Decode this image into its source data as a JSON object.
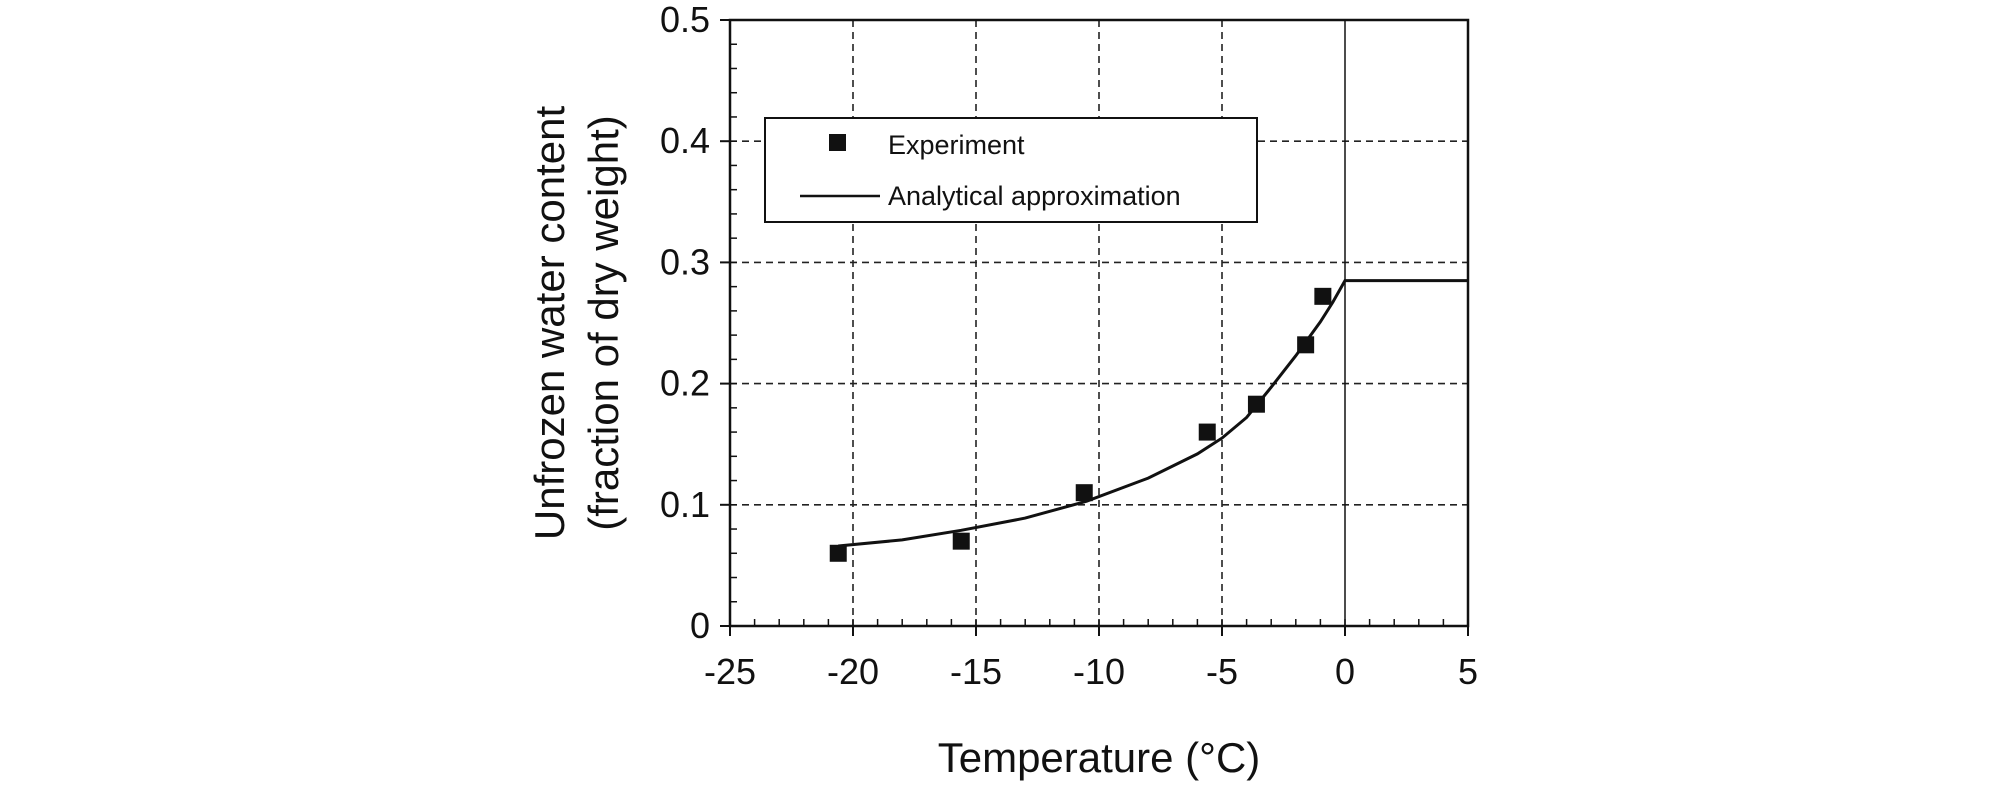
{
  "chart_data": {
    "type": "scatter",
    "title": "",
    "xlabel": "Temperature (°C)",
    "ylabel_lines": [
      "Unfrozen water content",
      "(fraction of dry weight)"
    ],
    "xlim": [
      -25,
      5
    ],
    "ylim": [
      0,
      0.5
    ],
    "x_ticks": [
      -25,
      -20,
      -15,
      -10,
      -5,
      0,
      5
    ],
    "x_tick_labels": [
      "-25",
      "-20",
      "-15",
      "-10",
      "-5",
      "0",
      "5"
    ],
    "y_ticks": [
      0,
      0.1,
      0.2,
      0.3,
      0.4,
      0.5
    ],
    "y_tick_labels": [
      "0",
      "0.1",
      "0.2",
      "0.3",
      "0.4",
      "0.5"
    ],
    "grid": true,
    "legend_position": "upper-left",
    "series": [
      {
        "name": "Experiment",
        "kind": "markers",
        "marker": "square",
        "color": "#111111",
        "x": [
          -20.6,
          -15.6,
          -10.6,
          -5.6,
          -3.6,
          -1.6,
          -0.9
        ],
        "y": [
          0.06,
          0.07,
          0.11,
          0.16,
          0.183,
          0.232,
          0.272
        ]
      },
      {
        "name": "Analytical approximation",
        "kind": "line",
        "color": "#111111",
        "x": [
          -20.6,
          -18,
          -15.6,
          -13,
          -10.5,
          -8,
          -6,
          -5,
          -4,
          -3,
          -2,
          -1,
          -0.5,
          0,
          2,
          5
        ],
        "y": [
          0.066,
          0.071,
          0.079,
          0.089,
          0.103,
          0.122,
          0.142,
          0.155,
          0.172,
          0.197,
          0.223,
          0.251,
          0.267,
          0.285,
          0.285,
          0.285
        ]
      }
    ]
  }
}
